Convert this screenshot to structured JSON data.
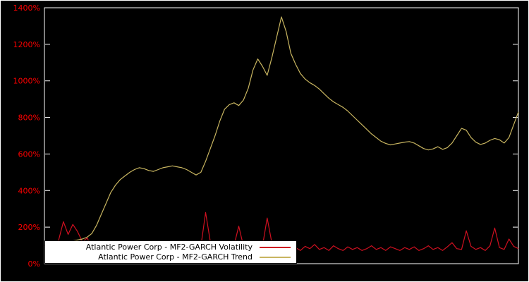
{
  "figure": {
    "background": "#000000",
    "outer_border_color": "#ffffff"
  },
  "chart_data": {
    "type": "line",
    "title": "",
    "xlabel": "",
    "ylabel": "",
    "x_mode": "index",
    "x_tick_labels": [],
    "ylim": [
      0,
      1400
    ],
    "y_tick_step": 200,
    "y_tick_suffix": "%",
    "y_tick_labels": [
      "0%",
      "200%",
      "400%",
      "600%",
      "800%",
      "1000%",
      "1200%",
      "1400%"
    ],
    "grid": false,
    "frame_color": "#ffffff",
    "axis_label_color": "#ff0000",
    "legend_position": "bottom-left",
    "series": [
      {
        "name": "Atlantic Power Corp - MF2-GARCH Volatility",
        "id": "volatility-line",
        "color": "#cf1020",
        "values": [
          100,
          85,
          95,
          130,
          230,
          160,
          215,
          175,
          120,
          140,
          95,
          80,
          100,
          85,
          120,
          90,
          75,
          100,
          80,
          75,
          95,
          80,
          72,
          88,
          78,
          98,
          82,
          72,
          92,
          78,
          88,
          72,
          82,
          95,
          280,
          120,
          85,
          95,
          78,
          88,
          100,
          205,
          95,
          80,
          90,
          75,
          95,
          250,
          110,
          85,
          95,
          80,
          115,
          88,
          72,
          95,
          82,
          105,
          78,
          88,
          72,
          98,
          82,
          72,
          92,
          78,
          88,
          72,
          82,
          98,
          78,
          88,
          72,
          92,
          82,
          72,
          88,
          78,
          92,
          72,
          82,
          98,
          78,
          88,
          72,
          92,
          115,
          82,
          78,
          180,
          95,
          78,
          88,
          72,
          98,
          195,
          88,
          78,
          135,
          95,
          82
        ]
      },
      {
        "name": "Atlantic Power Corp - MF2-GARCH Trend",
        "id": "trend-line",
        "color": "#c8b560",
        "values": [
          90,
          95,
          100,
          105,
          115,
          120,
          125,
          130,
          135,
          145,
          165,
          210,
          270,
          330,
          390,
          430,
          460,
          480,
          500,
          515,
          525,
          520,
          510,
          505,
          515,
          525,
          530,
          535,
          530,
          525,
          515,
          500,
          485,
          500,
          560,
          630,
          700,
          780,
          845,
          870,
          880,
          865,
          895,
          960,
          1060,
          1120,
          1080,
          1030,
          1130,
          1240,
          1350,
          1270,
          1150,
          1090,
          1040,
          1010,
          990,
          975,
          955,
          930,
          905,
          885,
          870,
          855,
          835,
          810,
          785,
          760,
          735,
          710,
          690,
          670,
          658,
          650,
          655,
          660,
          665,
          668,
          660,
          645,
          630,
          622,
          628,
          640,
          625,
          635,
          660,
          700,
          740,
          730,
          690,
          665,
          652,
          660,
          675,
          685,
          678,
          660,
          690,
          760,
          830
        ]
      }
    ]
  }
}
